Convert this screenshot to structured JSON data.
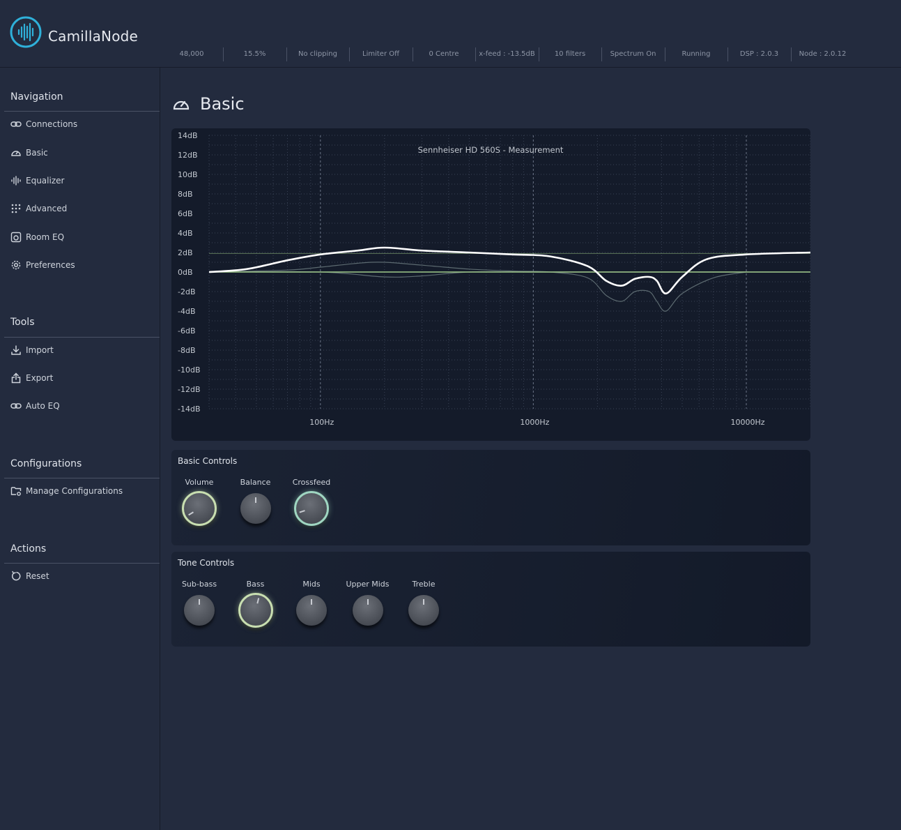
{
  "app": {
    "title": "CamillaNode"
  },
  "status_bar": [
    "48,000",
    "15.5%",
    "No clipping",
    "Limiter Off",
    "0 Centre",
    "x-feed : -13.5dB",
    "10 filters",
    "Spectrum On",
    "Running",
    "DSP : 2.0.3",
    "Node : 2.0.12"
  ],
  "sidebar": {
    "navigation": {
      "title": "Navigation",
      "items": [
        {
          "label": "Connections",
          "icon": "link-icon"
        },
        {
          "label": "Basic",
          "icon": "gauge-icon"
        },
        {
          "label": "Equalizer",
          "icon": "waveform-icon"
        },
        {
          "label": "Advanced",
          "icon": "dots-icon"
        },
        {
          "label": "Room EQ",
          "icon": "speaker-icon"
        },
        {
          "label": "Preferences",
          "icon": "gear-icon"
        }
      ]
    },
    "tools": {
      "title": "Tools",
      "items": [
        {
          "label": "Import",
          "icon": "download-icon"
        },
        {
          "label": "Export",
          "icon": "upload-icon"
        },
        {
          "label": "Auto EQ",
          "icon": "link-icon"
        }
      ]
    },
    "configurations": {
      "title": "Configurations",
      "items": [
        {
          "label": "Manage Configurations",
          "icon": "folder-gear-icon"
        }
      ]
    },
    "actions": {
      "title": "Actions",
      "items": [
        {
          "label": "Reset",
          "icon": "reset-icon"
        }
      ]
    }
  },
  "page": {
    "title": "Basic",
    "icon": "gauge-icon"
  },
  "chart_data": {
    "type": "line",
    "title": "Sennheiser HD 560S - Measurement",
    "xscale": "log",
    "xlim": [
      30,
      20000
    ],
    "ylim": [
      -14,
      14
    ],
    "y_ticks": [
      "14dB",
      "12dB",
      "10dB",
      "8dB",
      "6dB",
      "4dB",
      "2dB",
      "0dB",
      "-2dB",
      "-4dB",
      "-6dB",
      "-8dB",
      "-10dB",
      "-12dB",
      "-14dB"
    ],
    "x_ticks": [
      {
        "value": 100,
        "label": "100Hz"
      },
      {
        "value": 1000,
        "label": "1000Hz"
      },
      {
        "value": 10000,
        "label": "10000Hz"
      }
    ],
    "grid": true,
    "colors": {
      "total": "#ffffff",
      "faint": "#5c6a70",
      "flat": "#9fc98a",
      "reference": "#6f8f66"
    },
    "series": [
      {
        "role": "total",
        "x": [
          30,
          45,
          70,
          100,
          150,
          200,
          300,
          500,
          800,
          1200,
          1800,
          2200,
          2600,
          3000,
          3500,
          3800,
          4200,
          5000,
          6500,
          10000,
          20000
        ],
        "y": [
          0,
          0.3,
          1.2,
          1.8,
          2.2,
          2.5,
          2.2,
          2.0,
          1.8,
          1.6,
          0.6,
          -0.9,
          -1.4,
          -0.7,
          -0.5,
          -0.9,
          -2.2,
          -0.5,
          1.3,
          1.8,
          2.0
        ]
      },
      {
        "role": "faint",
        "x": [
          30,
          70,
          100,
          150,
          200,
          300,
          500,
          800,
          1200,
          1800,
          2200,
          2600,
          3000,
          3500,
          3800,
          4200,
          5000,
          7000,
          10000
        ],
        "y": [
          0,
          0.2,
          0.5,
          0.9,
          1.0,
          0.7,
          0.3,
          0.1,
          0,
          -0.6,
          -2.4,
          -3.0,
          -2.0,
          -2.0,
          -3.0,
          -4.0,
          -2.2,
          -0.6,
          0
        ]
      },
      {
        "role": "faint",
        "x": [
          30,
          100,
          200,
          300,
          500,
          1000,
          2000,
          5000,
          10000,
          20000
        ],
        "y": [
          0,
          0,
          -0.5,
          -0.4,
          0,
          0,
          0,
          0,
          0,
          0
        ]
      },
      {
        "role": "flat",
        "x": [
          30,
          20000
        ],
        "y": [
          0,
          0
        ]
      },
      {
        "role": "reference",
        "x": [
          30,
          20000
        ],
        "y": [
          1.9,
          1.9
        ]
      }
    ]
  },
  "basic_controls": {
    "title": "Basic Controls",
    "knobs": [
      {
        "label": "Volume",
        "active": true,
        "accent": "#c8deb0",
        "value": 0.05
      },
      {
        "label": "Balance",
        "active": false,
        "value": 0.5
      },
      {
        "label": "Crossfeed",
        "active": true,
        "accent": "#9fd6c1",
        "value": 0.1
      }
    ]
  },
  "tone_controls": {
    "title": "Tone Controls",
    "knobs": [
      {
        "label": "Sub-bass",
        "active": false,
        "value": 0.5
      },
      {
        "label": "Bass",
        "active": true,
        "accent": "#c8deb0",
        "value": 0.55
      },
      {
        "label": "Mids",
        "active": false,
        "value": 0.5
      },
      {
        "label": "Upper Mids",
        "active": false,
        "value": 0.5
      },
      {
        "label": "Treble",
        "active": false,
        "value": 0.5
      }
    ]
  }
}
